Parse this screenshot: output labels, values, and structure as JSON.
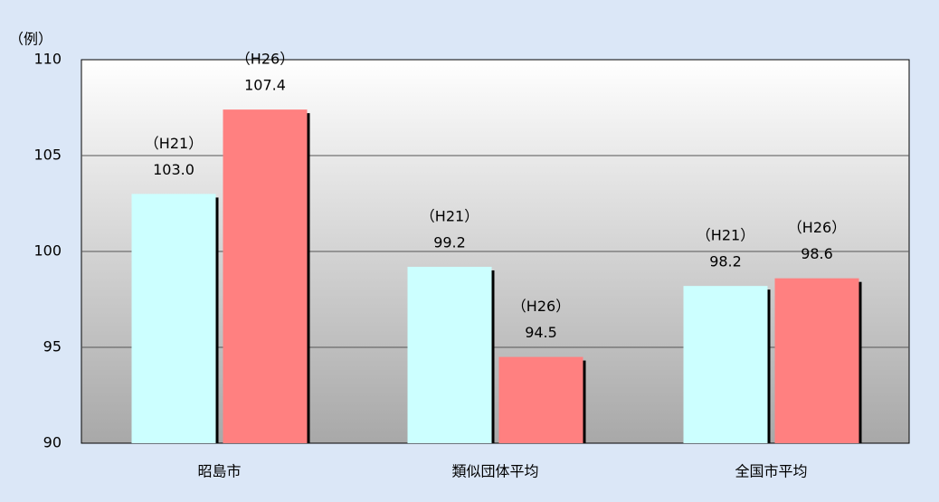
{
  "chart_data": {
    "type": "bar",
    "y_unit_label": "（例）",
    "categories": [
      "昭島市",
      "類似団体平均",
      "全国市平均"
    ],
    "series": [
      {
        "name": "（H21）",
        "color": "#ccffff",
        "values": [
          103.0,
          99.2,
          98.2
        ],
        "value_labels": [
          "103.0",
          "99.2",
          "98.2"
        ]
      },
      {
        "name": "（H26）",
        "color": "#ff8080",
        "values": [
          107.4,
          94.5,
          98.6
        ],
        "value_labels": [
          "107.4",
          "94.5",
          "98.6"
        ]
      }
    ],
    "ylim": [
      90,
      110
    ],
    "yticks": [
      90,
      95,
      100,
      105,
      110
    ],
    "grid": true
  }
}
